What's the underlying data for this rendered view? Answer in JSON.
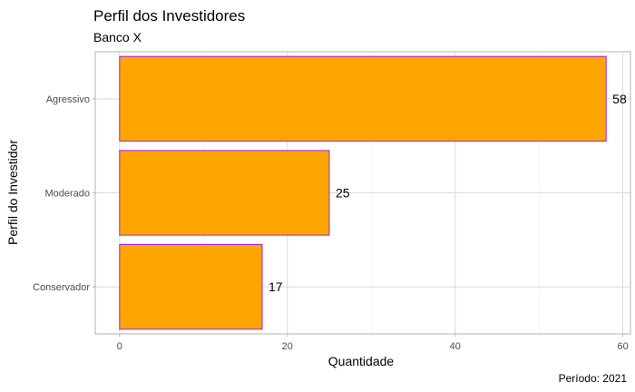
{
  "chart_data": {
    "type": "bar",
    "orientation": "horizontal",
    "title": "Perfil dos Investidores",
    "subtitle": "Banco X",
    "caption": "Período: 2021",
    "xlabel": "Quantidade",
    "ylabel": "Perfil do Investidor",
    "categories": [
      "Agressivo",
      "Moderado",
      "Conservador"
    ],
    "values": [
      58,
      25,
      17
    ],
    "data_labels": [
      "58",
      "25",
      "17"
    ],
    "xlim": [
      -2.9,
      60.9
    ],
    "x_ticks": [
      0,
      20,
      40,
      60
    ],
    "x_tick_labels": [
      "0",
      "20",
      "40",
      "60"
    ],
    "grid": true,
    "legend": "none",
    "colors": {
      "bar_fill": "#FFA500",
      "bar_stroke": "#A020F0",
      "grid_major": "#D9D9D9",
      "grid_minor": "#EBEBEB",
      "panel_border": "#B3B3B3",
      "tick_mark": "#B3B3B3",
      "tick_label": "#4D4D4D",
      "text": "#000000"
    }
  }
}
